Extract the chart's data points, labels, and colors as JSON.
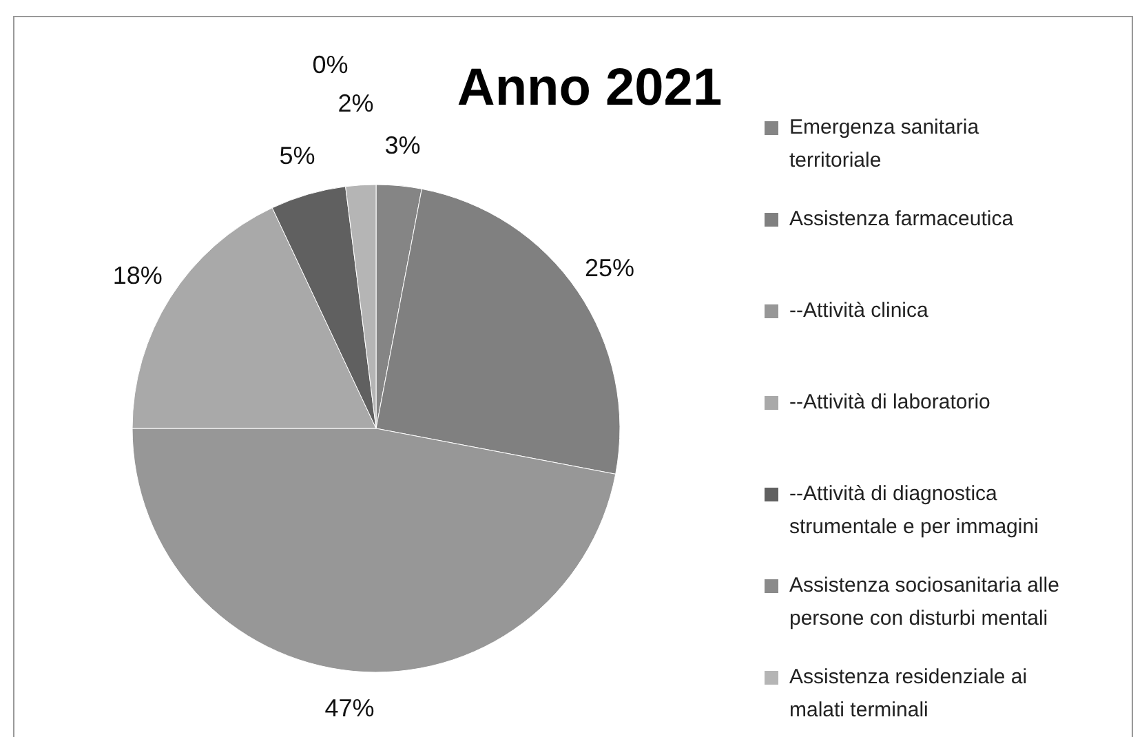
{
  "chart_data": {
    "type": "pie",
    "title": "Anno 2021",
    "categories": [
      "Emergenza sanitaria territoriale",
      "Assistenza farmaceutica",
      "--Attività clinica",
      "--Attività di laboratorio",
      "--Attività di diagnostica strumentale e per immagini",
      "Assistenza sociosanitaria alle persone con disturbi mentali",
      "Assistenza residenziale ai malati terminali"
    ],
    "values": [
      3,
      25,
      47,
      18,
      5,
      0,
      2
    ],
    "colors": [
      "#858585",
      "#808080",
      "#979797",
      "#a9a9a9",
      "#606060",
      "#8a8a8a",
      "#b5b5b5"
    ],
    "value_labels": [
      "3%",
      "25%",
      "47%",
      "18%",
      "5%",
      "0%",
      "2%"
    ],
    "legend": "right"
  }
}
